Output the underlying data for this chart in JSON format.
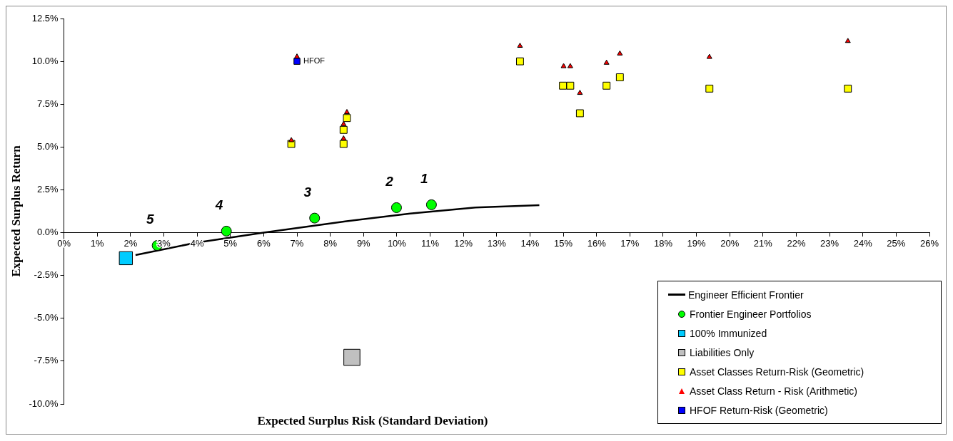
{
  "chart_data": {
    "type": "scatter",
    "xlabel": "Expected Surplus Risk (Standard Deviation)",
    "ylabel": "Expected Surplus Return",
    "xlim": [
      0,
      26
    ],
    "ylim": [
      -10,
      12.5
    ],
    "xticks": [
      {
        "value": 0,
        "label": "0%"
      },
      {
        "value": 1,
        "label": "1%"
      },
      {
        "value": 2,
        "label": "2%"
      },
      {
        "value": 3,
        "label": "3%"
      },
      {
        "value": 4,
        "label": "4%"
      },
      {
        "value": 5,
        "label": "5%"
      },
      {
        "value": 6,
        "label": "6%"
      },
      {
        "value": 7,
        "label": "7%"
      },
      {
        "value": 8,
        "label": "8%"
      },
      {
        "value": 9,
        "label": "9%"
      },
      {
        "value": 10,
        "label": "10%"
      },
      {
        "value": 11,
        "label": "11%"
      },
      {
        "value": 12,
        "label": "12%"
      },
      {
        "value": 13,
        "label": "13%"
      },
      {
        "value": 14,
        "label": "14%"
      },
      {
        "value": 15,
        "label": "15%"
      },
      {
        "value": 16,
        "label": "16%"
      },
      {
        "value": 17,
        "label": "17%"
      },
      {
        "value": 18,
        "label": "18%"
      },
      {
        "value": 19,
        "label": "19%"
      },
      {
        "value": 20,
        "label": "20%"
      },
      {
        "value": 21,
        "label": "21%"
      },
      {
        "value": 22,
        "label": "22%"
      },
      {
        "value": 23,
        "label": "23%"
      },
      {
        "value": 24,
        "label": "24%"
      },
      {
        "value": 25,
        "label": "25%"
      },
      {
        "value": 26,
        "label": "26%"
      }
    ],
    "yticks": [
      {
        "value": -10,
        "label": "-10.0%"
      },
      {
        "value": -7.5,
        "label": "-7.5%"
      },
      {
        "value": -5,
        "label": "-5.0%"
      },
      {
        "value": -2.5,
        "label": "-2.5%"
      },
      {
        "value": 0,
        "label": "0.0%"
      },
      {
        "value": 2.5,
        "label": "2.5%"
      },
      {
        "value": 5,
        "label": "5.0%"
      },
      {
        "value": 7.5,
        "label": "7.5%"
      },
      {
        "value": 10,
        "label": "10.0%"
      },
      {
        "value": 12.5,
        "label": "12.5%"
      }
    ],
    "legend": "bottom right",
    "series": [
      {
        "name": "Engineer Efficient Frontier",
        "type": "line",
        "marker": "none",
        "color": "#000000",
        "x": [
          2.15,
          3.96,
          6.0,
          8.45,
          10.4,
          12.36,
          14.28
        ],
        "values": [
          -1.31,
          -0.59,
          0,
          0.66,
          1.11,
          1.47,
          1.6
        ]
      },
      {
        "name": "Frontier Engineer Portfolios",
        "type": "scatter",
        "marker": "circle",
        "color": "#00ff00",
        "x": [
          11.04,
          9.99,
          7.53,
          4.88,
          2.8
        ],
        "values": [
          1.63,
          1.46,
          0.85,
          0.09,
          -0.75
        ]
      },
      {
        "name": "100% Immunized",
        "type": "scatter",
        "marker": "square",
        "color": "#00ccff",
        "x": [
          1.86
        ],
        "values": [
          -1.49
        ]
      },
      {
        "name": "Liabilities Only",
        "type": "scatter",
        "marker": "square",
        "color": "#c0c0c0",
        "x": [
          8.65
        ],
        "values": [
          -7.28
        ]
      },
      {
        "name": "Asset Classes Return-Risk (Geometric)",
        "type": "scatter",
        "marker": "square",
        "color": "#ffff00",
        "x": [
          6.83,
          8.4,
          8.4,
          8.5,
          13.7,
          14.99,
          15.21,
          15.5,
          16.3,
          16.7,
          19.39,
          23.55
        ],
        "values": [
          5.18,
          5.18,
          6.0,
          6.69,
          10.0,
          8.58,
          8.58,
          6.97,
          8.58,
          9.07,
          8.41,
          8.41
        ]
      },
      {
        "name": "Asset Class Return - Risk (Arithmetic)",
        "type": "scatter",
        "marker": "triangle",
        "color": "#ff0000",
        "x": [
          6.83,
          8.4,
          8.4,
          8.5,
          13.7,
          15.01,
          15.21,
          15.5,
          16.3,
          16.7,
          19.39,
          23.55,
          7.0
        ],
        "values": [
          5.39,
          5.49,
          6.33,
          7.03,
          10.9,
          9.71,
          9.71,
          8.15,
          9.91,
          10.45,
          10.25,
          11.18,
          10.27
        ]
      },
      {
        "name": "HFOF Return-Risk (Geometric)",
        "type": "scatter",
        "marker": "square",
        "color": "#0000ff",
        "x": [
          7.0
        ],
        "values": [
          10.0
        ]
      }
    ],
    "annotations": [
      {
        "text": "HFOF",
        "x": 7.0,
        "y": 10.0
      },
      {
        "text": "1",
        "x": 11.04,
        "y": 1.63
      },
      {
        "text": "2",
        "x": 9.99,
        "y": 1.46
      },
      {
        "text": "3",
        "x": 7.53,
        "y": 0.85
      },
      {
        "text": "4",
        "x": 4.88,
        "y": 0.09
      },
      {
        "text": "5",
        "x": 2.8,
        "y": -0.75
      }
    ]
  }
}
